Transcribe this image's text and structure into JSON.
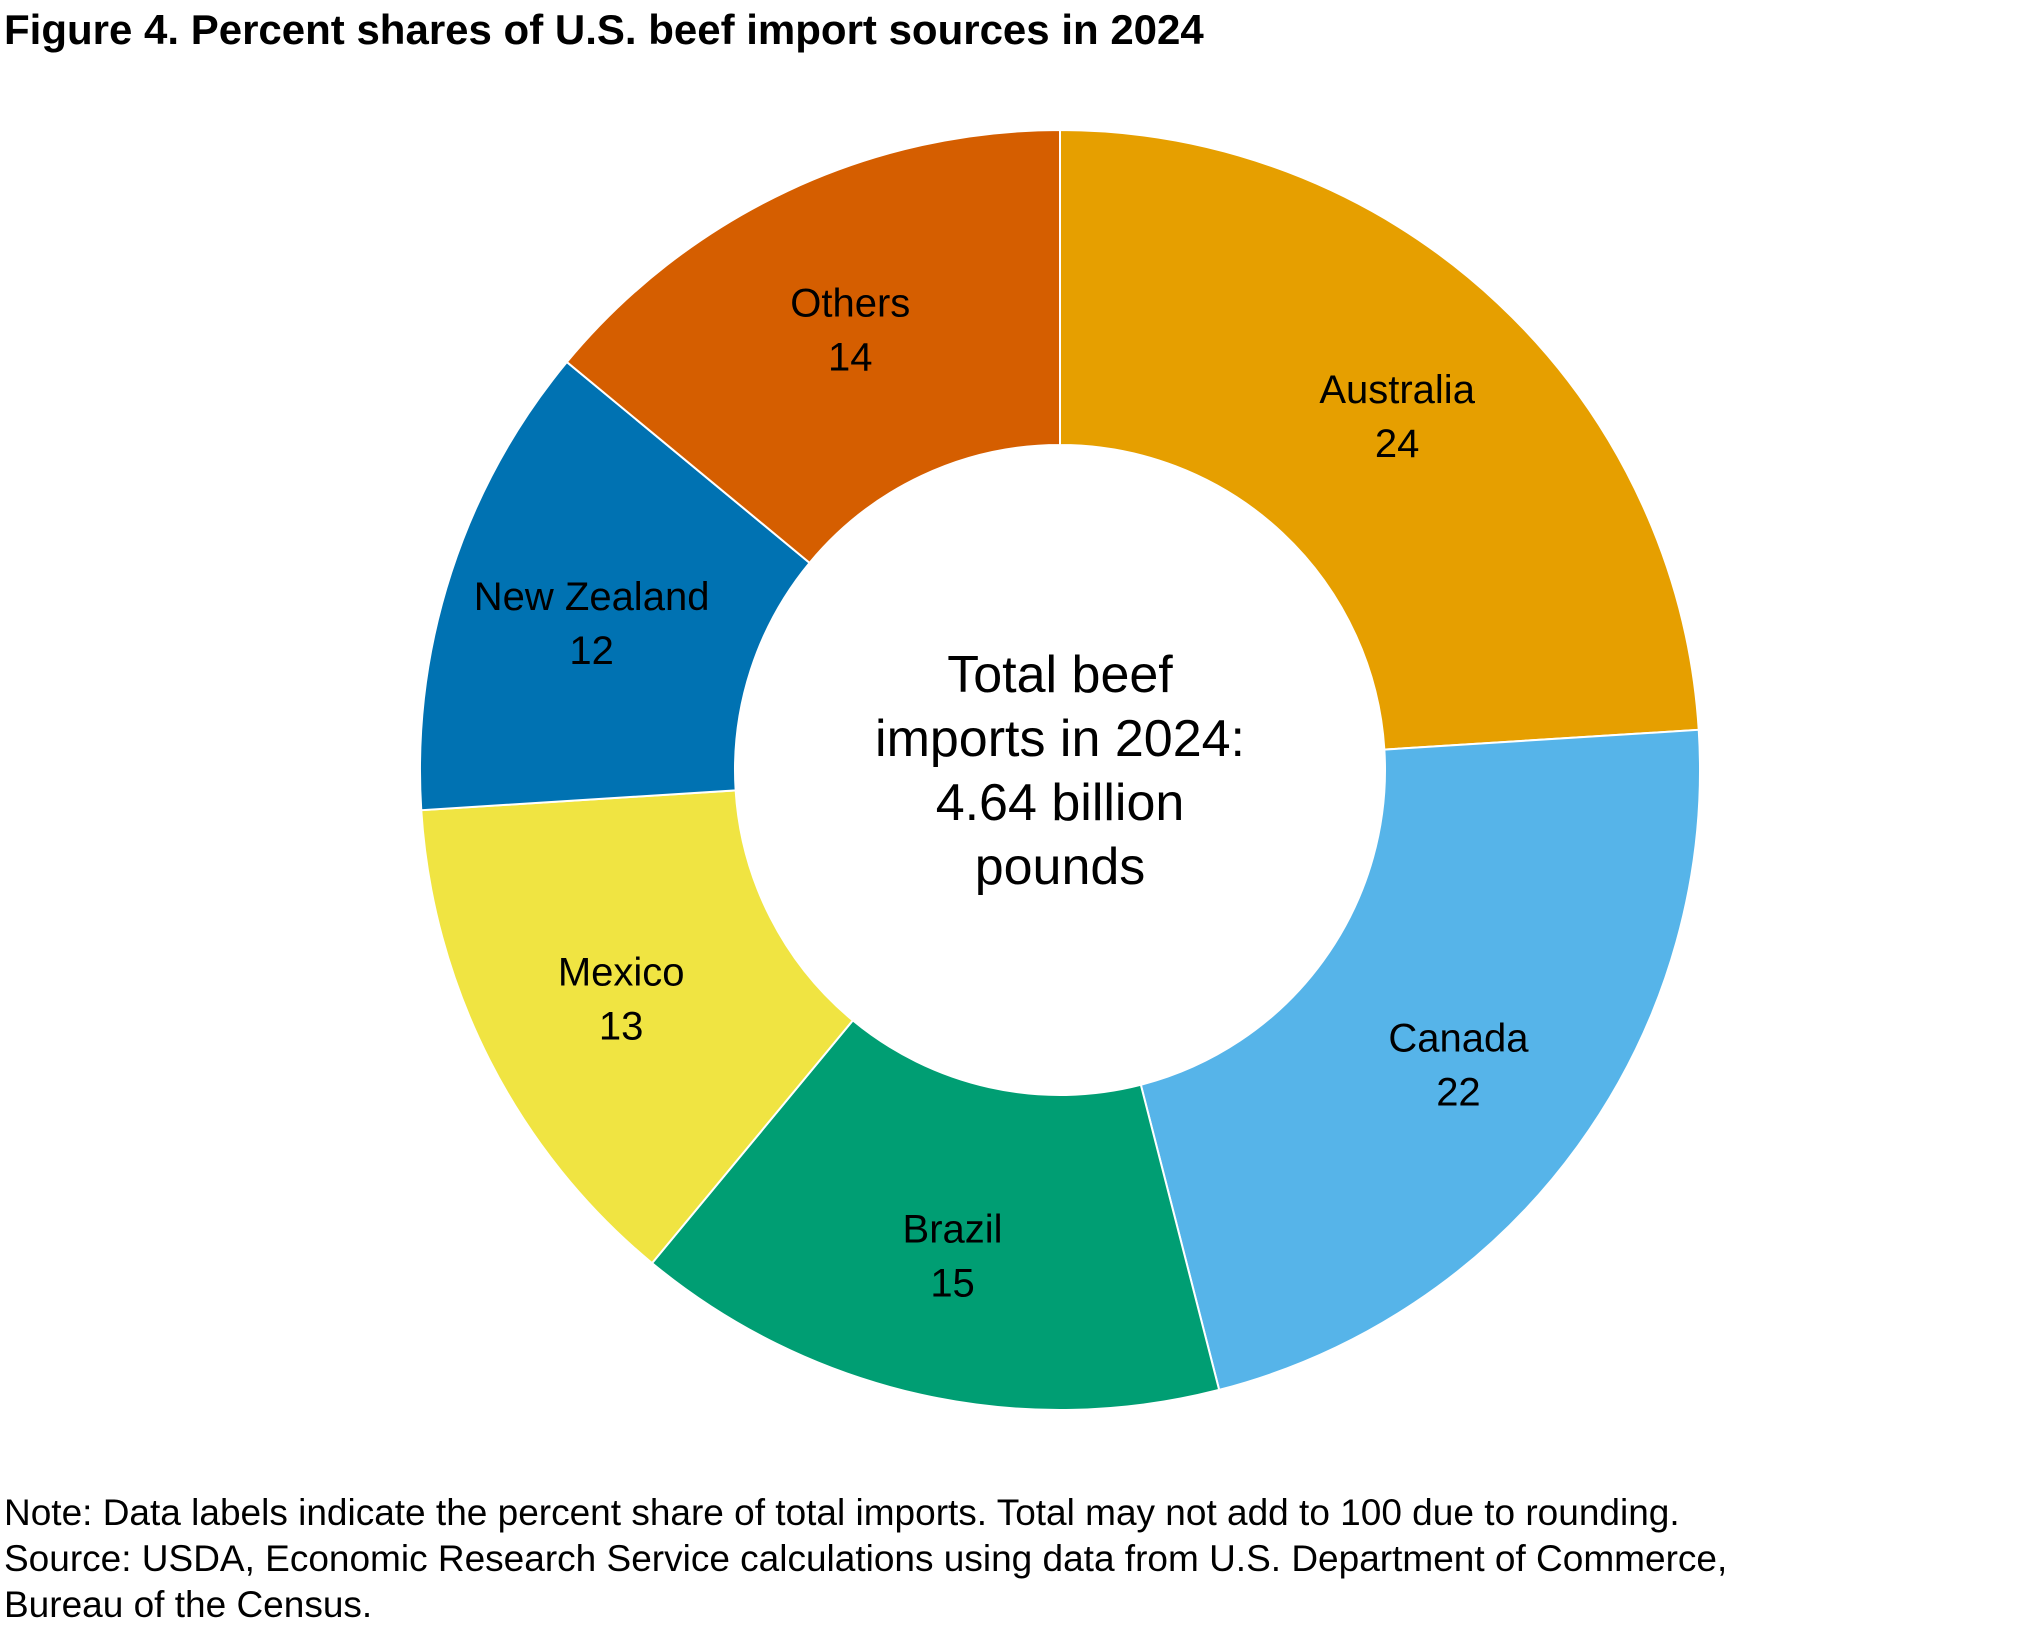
{
  "title": "Figure 4. Percent shares of U.S. beef import sources in 2024",
  "center_label": [
    "Total beef",
    "imports in 2024:",
    "4.64 billion",
    "pounds"
  ],
  "notes": {
    "note": "Note: Data labels indicate the percent share of total imports. Total may not add to 100 due to rounding.",
    "source_line1": "Source: USDA, Economic Research Service calculations using data from U.S. Department of Commerce,",
    "source_line2": "Bureau of the Census."
  },
  "chart_data": {
    "type": "pie",
    "donut": true,
    "title": "Figure 4. Percent shares of U.S. beef import sources in 2024",
    "slices": [
      {
        "label": "Australia",
        "value": 24,
        "color": "#E69F00"
      },
      {
        "label": "Canada",
        "value": 22,
        "color": "#56B4E9"
      },
      {
        "label": "Brazil",
        "value": 15,
        "color": "#009E73"
      },
      {
        "label": "Mexico",
        "value": 13,
        "color": "#F0E442"
      },
      {
        "label": "New Zealand",
        "value": 12,
        "color": "#0072B2"
      },
      {
        "label": "Others",
        "value": 14,
        "color": "#D55E00"
      }
    ],
    "start": "top",
    "direction": "clockwise",
    "legend": "none"
  }
}
